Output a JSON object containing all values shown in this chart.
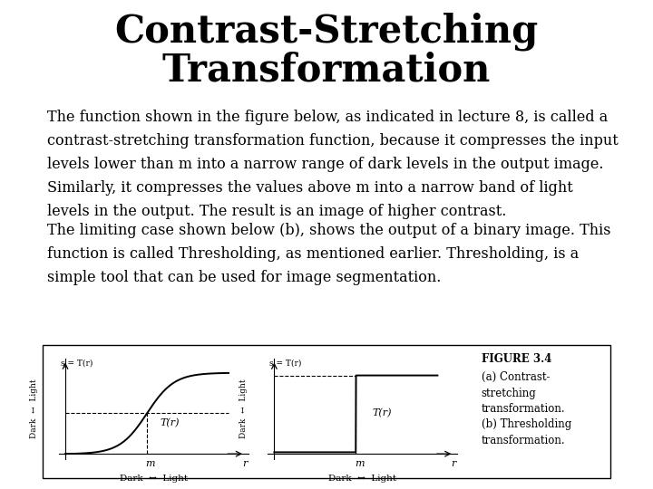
{
  "title_line1": "Contrast-Stretching",
  "title_line2": "Transformation",
  "title_fontsize": 30,
  "font": "DejaVu Serif",
  "para1_lines": [
    "The function shown in the figure below, as indicated in lecture 8, is called a",
    "contrast-stretching transformation function, because it compresses the input",
    "levels lower than m into a narrow range of dark levels in the output image.",
    "Similarly, it compresses the values above m into a narrow band of light",
    "levels in the output. The result is an image of higher contrast."
  ],
  "para2_lines": [
    "The limiting case shown below (b), shows the output of a binary image. This",
    "function is called Thresholding, as mentioned earlier. Thresholding, is a",
    "simple tool that can be used for image segmentation."
  ],
  "para_fontsize": 11.5,
  "background": "#ffffff",
  "text_color": "#000000",
  "fig_caption_title": "FIGURE 3.4",
  "fig_caption_lines": [
    "(a) Contrast-",
    "stretching",
    "transformation.",
    "(b) Thresholding",
    "transformation."
  ],
  "fig_caption_fontsize": 8.5
}
